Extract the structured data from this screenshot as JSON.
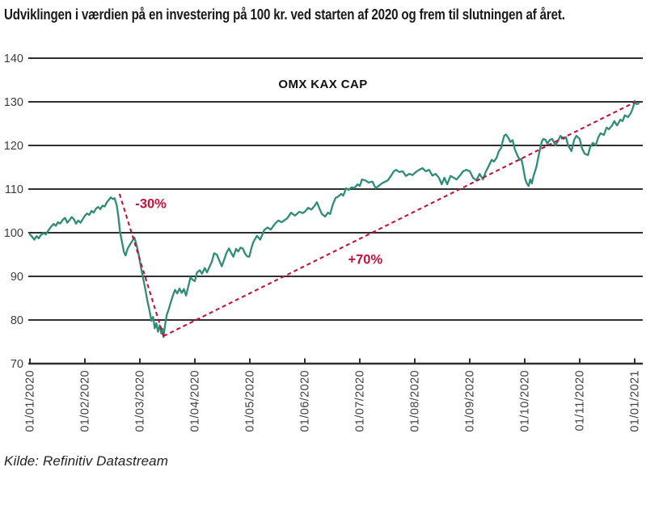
{
  "page": {
    "title": "Udviklingen i værdien på en investering på 100 kr. ved starten af 2020 og frem til slutningen af året.",
    "source": "Kilde: Refinitiv Datastream"
  },
  "chart_data": {
    "type": "line",
    "title": "OMX KAX CAP",
    "xlabel": "",
    "ylabel": "",
    "ylim": [
      70,
      140
    ],
    "yticks": [
      70,
      80,
      90,
      100,
      110,
      120,
      130,
      140
    ],
    "xtick_labels": [
      "01/01/2020",
      "01/02/2020",
      "01/03/2020",
      "01/04/2020",
      "01/05/2020",
      "01/06/2020",
      "01/07/2020",
      "01/08/2020",
      "01/09/2020",
      "01/10/2020",
      "01/11/2020",
      "01/01/2021"
    ],
    "x_unit": "month-tick index since 01/01/2020 (uniform tick spacing)",
    "grid": "horizontal gridlines only",
    "baseline_value": 100,
    "axis_color": "#303030",
    "tick_label_color": "#3E3E3E",
    "series": [
      {
        "name": "OMX KAX CAP, værdi af 100 kr. investeret 01/01/2020",
        "color": "#2E8C77",
        "points": [
          [
            0,
            99.6
          ],
          [
            0.04,
            99.1
          ],
          [
            0.08,
            98.4
          ],
          [
            0.12,
            99.2
          ],
          [
            0.16,
            98.7
          ],
          [
            0.2,
            99.5
          ],
          [
            0.25,
            99.9
          ],
          [
            0.29,
            99.6
          ],
          [
            0.33,
            100.4
          ],
          [
            0.38,
            101.3
          ],
          [
            0.43,
            102
          ],
          [
            0.47,
            101.6
          ],
          [
            0.51,
            102.4
          ],
          [
            0.55,
            102.1
          ],
          [
            0.6,
            103
          ],
          [
            0.64,
            103.4
          ],
          [
            0.68,
            102.3
          ],
          [
            0.72,
            102.9
          ],
          [
            0.76,
            103.6
          ],
          [
            0.8,
            103.1
          ],
          [
            0.84,
            102.1
          ],
          [
            0.88,
            102.8
          ],
          [
            0.92,
            102.3
          ],
          [
            0.96,
            103.1
          ],
          [
            1,
            103.9
          ],
          [
            1.04,
            104.4
          ],
          [
            1.08,
            104.1
          ],
          [
            1.12,
            105
          ],
          [
            1.16,
            104.6
          ],
          [
            1.2,
            105.5
          ],
          [
            1.24,
            105.9
          ],
          [
            1.28,
            105.4
          ],
          [
            1.32,
            106.2
          ],
          [
            1.36,
            106
          ],
          [
            1.4,
            107
          ],
          [
            1.44,
            107.6
          ],
          [
            1.47,
            108.1
          ],
          [
            1.51,
            107.7
          ],
          [
            1.54,
            107.9
          ],
          [
            1.58,
            106.3
          ],
          [
            1.61,
            103.6
          ],
          [
            1.64,
            100.1
          ],
          [
            1.68,
            97.6
          ],
          [
            1.71,
            95.6
          ],
          [
            1.74,
            94.8
          ],
          [
            1.78,
            96.4
          ],
          [
            1.82,
            97.3
          ],
          [
            1.86,
            98.1
          ],
          [
            1.9,
            98.9
          ],
          [
            1.94,
            97.2
          ],
          [
            1.98,
            94.9
          ],
          [
            2.02,
            92
          ],
          [
            2.06,
            89.5
          ],
          [
            2.1,
            87
          ],
          [
            2.14,
            84.2
          ],
          [
            2.18,
            81.9
          ],
          [
            2.21,
            79.8
          ],
          [
            2.24,
            80.7
          ],
          [
            2.27,
            78.1
          ],
          [
            2.3,
            79.3
          ],
          [
            2.33,
            77.3
          ],
          [
            2.36,
            78.8
          ],
          [
            2.39,
            76.9
          ],
          [
            2.41,
            78
          ],
          [
            2.43,
            76.1
          ],
          [
            2.46,
            79
          ],
          [
            2.49,
            81.2
          ],
          [
            2.52,
            82.3
          ],
          [
            2.56,
            84
          ],
          [
            2.6,
            85.6
          ],
          [
            2.64,
            86.9
          ],
          [
            2.68,
            86.1
          ],
          [
            2.72,
            87.2
          ],
          [
            2.76,
            86.2
          ],
          [
            2.8,
            87.1
          ],
          [
            2.84,
            85.6
          ],
          [
            2.88,
            87.6
          ],
          [
            2.92,
            89.8
          ],
          [
            2.96,
            89.2
          ],
          [
            3,
            88.9
          ],
          [
            3.04,
            90.9
          ],
          [
            3.09,
            91.4
          ],
          [
            3.13,
            90.6
          ],
          [
            3.18,
            91.9
          ],
          [
            3.22,
            90.9
          ],
          [
            3.27,
            92.3
          ],
          [
            3.31,
            93.4
          ],
          [
            3.35,
            95.3
          ],
          [
            3.4,
            95
          ],
          [
            3.44,
            93.8
          ],
          [
            3.49,
            92.3
          ],
          [
            3.53,
            93.7
          ],
          [
            3.58,
            95.5
          ],
          [
            3.62,
            96.4
          ],
          [
            3.66,
            95.4
          ],
          [
            3.7,
            94.5
          ],
          [
            3.75,
            96.3
          ],
          [
            3.79,
            95.7
          ],
          [
            3.83,
            96.6
          ],
          [
            3.87,
            96.4
          ],
          [
            3.91,
            95.3
          ],
          [
            3.95,
            94.6
          ],
          [
            3.99,
            94.5
          ],
          [
            4.03,
            96.5
          ],
          [
            4.06,
            97.8
          ],
          [
            4.13,
            99.3
          ],
          [
            4.19,
            98.4
          ],
          [
            4.26,
            100.6
          ],
          [
            4.32,
            101.2
          ],
          [
            4.38,
            100.7
          ],
          [
            4.46,
            102.1
          ],
          [
            4.52,
            102.8
          ],
          [
            4.58,
            102.4
          ],
          [
            4.68,
            103.3
          ],
          [
            4.75,
            104.6
          ],
          [
            4.82,
            103.9
          ],
          [
            4.9,
            104.8
          ],
          [
            4.96,
            104.5
          ],
          [
            5,
            104.8
          ],
          [
            5.06,
            105.7
          ],
          [
            5.12,
            105.3
          ],
          [
            5.18,
            106.2
          ],
          [
            5.22,
            107
          ],
          [
            5.27,
            105.4
          ],
          [
            5.31,
            104.3
          ],
          [
            5.37,
            103.7
          ],
          [
            5.42,
            104.6
          ],
          [
            5.46,
            104.3
          ],
          [
            5.51,
            106.5
          ],
          [
            5.56,
            108
          ],
          [
            5.61,
            108.3
          ],
          [
            5.66,
            108.9
          ],
          [
            5.7,
            108.5
          ],
          [
            5.75,
            110.2
          ],
          [
            5.8,
            109.8
          ],
          [
            5.85,
            110.4
          ],
          [
            5.9,
            110.2
          ],
          [
            5.96,
            111.1
          ],
          [
            6,
            110.7
          ],
          [
            6.04,
            112.2
          ],
          [
            6.1,
            112
          ],
          [
            6.16,
            111.5
          ],
          [
            6.23,
            111.7
          ],
          [
            6.29,
            110.2
          ],
          [
            6.35,
            110.8
          ],
          [
            6.4,
            111.3
          ],
          [
            6.46,
            111.7
          ],
          [
            6.51,
            112
          ],
          [
            6.57,
            113.1
          ],
          [
            6.62,
            114.1
          ],
          [
            6.66,
            114.4
          ],
          [
            6.72,
            113.9
          ],
          [
            6.78,
            114.1
          ],
          [
            6.84,
            113
          ],
          [
            6.9,
            113.5
          ],
          [
            6.96,
            113.2
          ],
          [
            7.02,
            113.9
          ],
          [
            7.08,
            114.4
          ],
          [
            7.14,
            114.8
          ],
          [
            7.2,
            114.1
          ],
          [
            7.26,
            114.4
          ],
          [
            7.32,
            113.1
          ],
          [
            7.38,
            113.5
          ],
          [
            7.44,
            112.6
          ],
          [
            7.49,
            111.1
          ],
          [
            7.54,
            112.6
          ],
          [
            7.59,
            111.1
          ],
          [
            7.65,
            113
          ],
          [
            7.71,
            112.6
          ],
          [
            7.76,
            112.2
          ],
          [
            7.82,
            113.1
          ],
          [
            7.88,
            114.1
          ],
          [
            7.94,
            114.4
          ],
          [
            8,
            114.1
          ],
          [
            8.06,
            112.6
          ],
          [
            8.12,
            112
          ],
          [
            8.18,
            113.5
          ],
          [
            8.24,
            112.2
          ],
          [
            8.29,
            113.9
          ],
          [
            8.35,
            115.4
          ],
          [
            8.4,
            116.7
          ],
          [
            8.44,
            116.3
          ],
          [
            8.49,
            117.2
          ],
          [
            8.53,
            118.7
          ],
          [
            8.57,
            119.4
          ],
          [
            8.6,
            121
          ],
          [
            8.63,
            122.3
          ],
          [
            8.66,
            122.5
          ],
          [
            8.7,
            121.8
          ],
          [
            8.74,
            120.8
          ],
          [
            8.78,
            121.2
          ],
          [
            8.82,
            119.1
          ],
          [
            8.87,
            117.6
          ],
          [
            8.91,
            116.7
          ],
          [
            8.94,
            116.9
          ],
          [
            8.97,
            115
          ],
          [
            9.01,
            112.2
          ],
          [
            9.04,
            111.3
          ],
          [
            9.07,
            110.7
          ],
          [
            9.1,
            112.2
          ],
          [
            9.13,
            111.3
          ],
          [
            9.16,
            113
          ],
          [
            9.21,
            115
          ],
          [
            9.26,
            118.1
          ],
          [
            9.31,
            120.9
          ],
          [
            9.34,
            121.5
          ],
          [
            9.38,
            121.3
          ],
          [
            9.41,
            120.4
          ],
          [
            9.46,
            121.3
          ],
          [
            9.5,
            121.5
          ],
          [
            9.56,
            120
          ],
          [
            9.6,
            120.9
          ],
          [
            9.65,
            122.2
          ],
          [
            9.71,
            121.5
          ],
          [
            9.75,
            121.9
          ],
          [
            9.79,
            120
          ],
          [
            9.85,
            118.7
          ],
          [
            9.9,
            121.3
          ],
          [
            9.94,
            122.2
          ],
          [
            10,
            121.5
          ],
          [
            10.04,
            119.4
          ],
          [
            10.09,
            118.1
          ],
          [
            10.15,
            117.8
          ],
          [
            10.19,
            119.6
          ],
          [
            10.24,
            120.6
          ],
          [
            10.29,
            120
          ],
          [
            10.34,
            121.9
          ],
          [
            10.38,
            122.8
          ],
          [
            10.44,
            122.4
          ],
          [
            10.49,
            124.1
          ],
          [
            10.53,
            123.7
          ],
          [
            10.59,
            124.6
          ],
          [
            10.63,
            125.6
          ],
          [
            10.68,
            124.6
          ],
          [
            10.74,
            125.9
          ],
          [
            10.78,
            125.6
          ],
          [
            10.82,
            126.9
          ],
          [
            10.88,
            126.5
          ],
          [
            10.93,
            127.4
          ],
          [
            10.97,
            128.7
          ],
          [
            11,
            130.2
          ],
          [
            11.03,
            129.5
          ],
          [
            11.07,
            129.6
          ]
        ]
      }
    ],
    "annotations": [
      {
        "id": "drawdown",
        "label": "-30%",
        "color": "#C2123C",
        "style": "dashed",
        "from": [
          1.63,
          108.9
        ],
        "to": [
          2.43,
          76.3
        ],
        "label_at": [
          2.2,
          106.8
        ]
      },
      {
        "id": "recovery",
        "label": "+70%",
        "color": "#C2123C",
        "style": "dashed",
        "from": [
          2.43,
          76.3
        ],
        "to": [
          11.02,
          130
        ],
        "label_at": [
          6.1,
          94
        ]
      }
    ]
  }
}
